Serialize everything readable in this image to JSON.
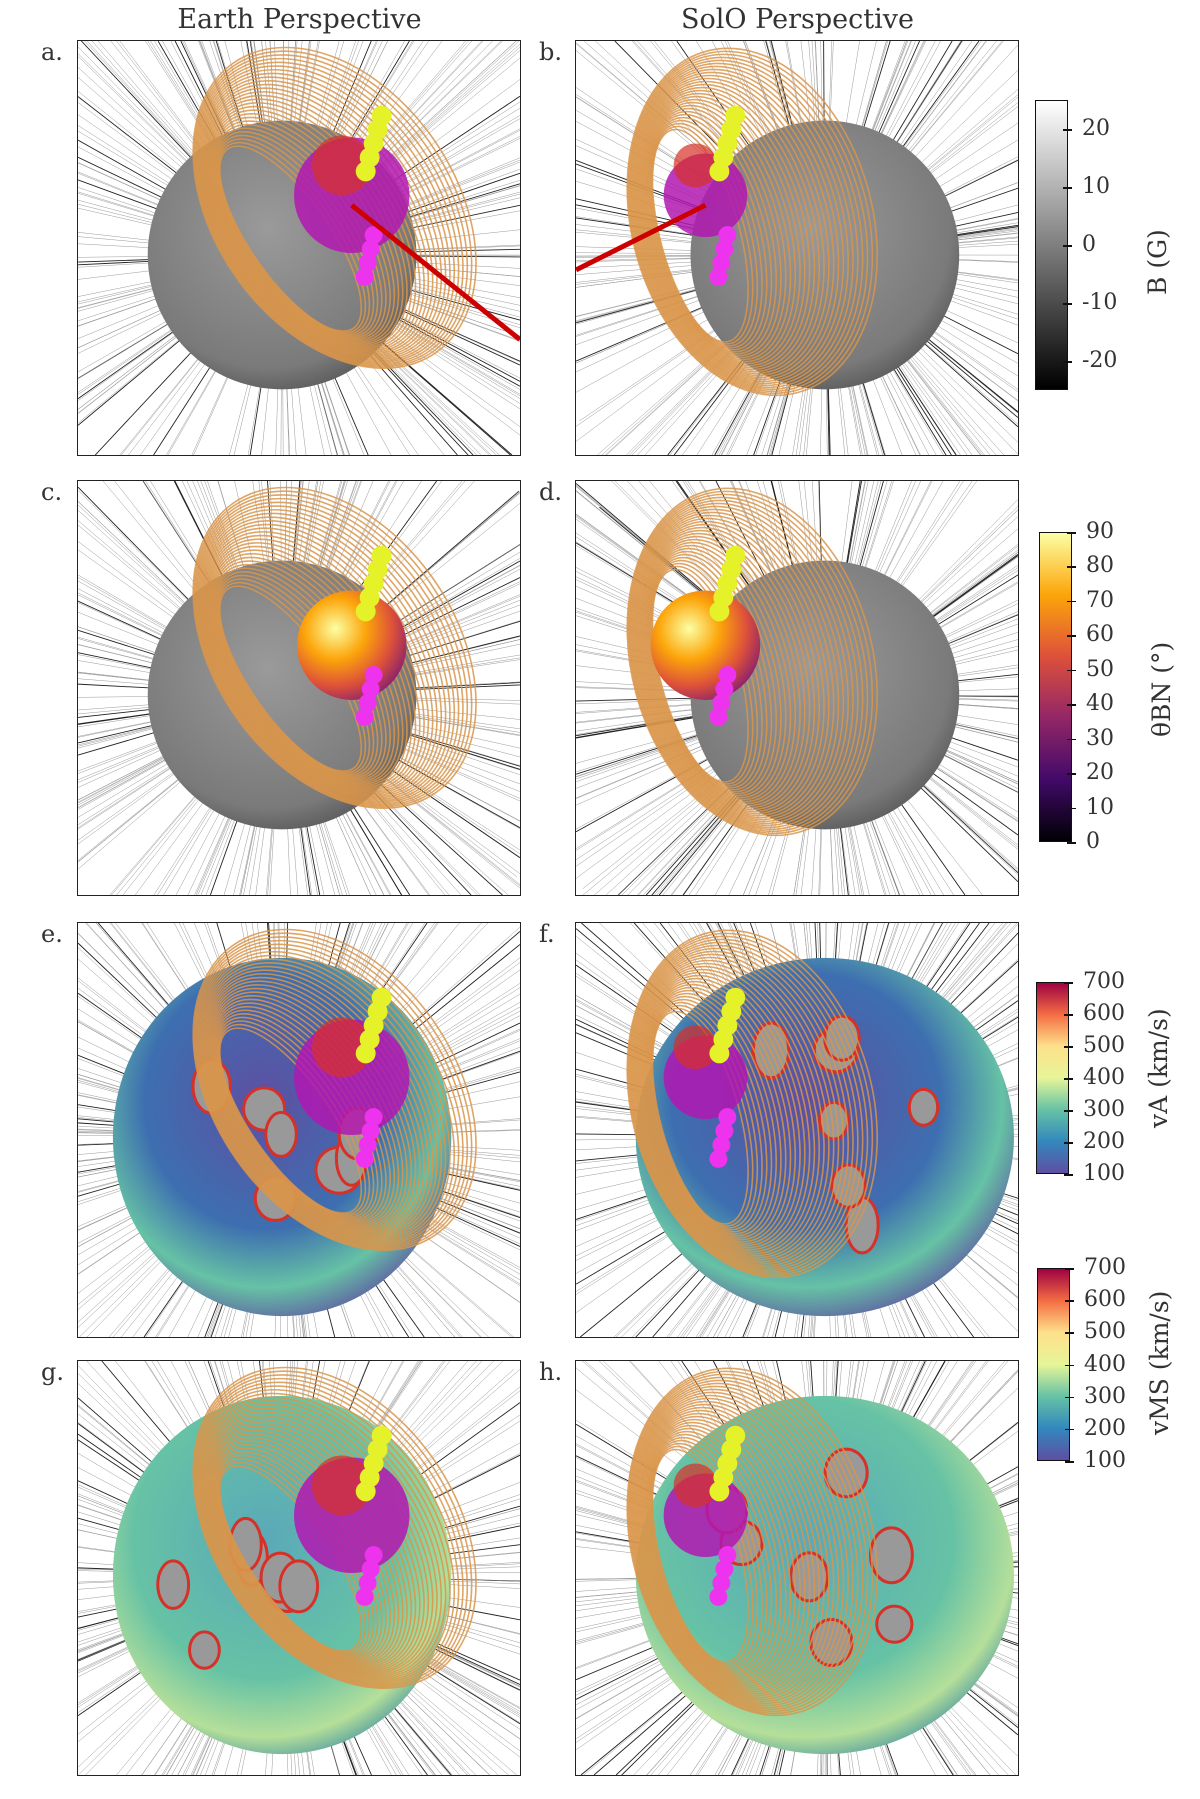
{
  "column_titles": [
    "Earth Perspective",
    "SolO Perspective"
  ],
  "panels": [
    {
      "label": "a.",
      "view": "earth",
      "surface": "magnetogram"
    },
    {
      "label": "b.",
      "view": "solo",
      "surface": "magnetogram"
    },
    {
      "label": "c.",
      "view": "earth",
      "surface": "magnetogram"
    },
    {
      "label": "d.",
      "view": "solo",
      "surface": "magnetogram"
    },
    {
      "label": "e.",
      "view": "earth",
      "surface": "alfven-speed"
    },
    {
      "label": "f.",
      "view": "solo",
      "surface": "alfven-speed"
    },
    {
      "label": "g.",
      "view": "earth",
      "surface": "magnetosonic-speed"
    },
    {
      "label": "h.",
      "view": "solo",
      "surface": "magnetosonic-speed"
    }
  ],
  "colorbars": [
    {
      "label": "B (G)",
      "ticks": [
        "20",
        "10",
        "0",
        "-10",
        "-20"
      ],
      "range": [
        -25,
        25
      ],
      "colors": [
        "#000000",
        "#7f7f7f",
        "#ffffff"
      ]
    },
    {
      "label": "θBN (°)",
      "ticks": [
        "90",
        "80",
        "70",
        "60",
        "50",
        "40",
        "30",
        "20",
        "10",
        "0"
      ],
      "range": [
        0,
        90
      ],
      "colors": [
        "#000004",
        "#420a68",
        "#932667",
        "#dd513a",
        "#fca50a",
        "#fcffa4"
      ]
    },
    {
      "label": "vA (km/s)",
      "ticks": [
        "700",
        "600",
        "500",
        "400",
        "300",
        "200",
        "100"
      ],
      "range": [
        100,
        700
      ],
      "colors": [
        "#5e4fa2",
        "#3288bd",
        "#66c2a5",
        "#e6f598",
        "#fee08b",
        "#f46d43",
        "#9e0142"
      ]
    },
    {
      "label": "vMS (km/s)",
      "ticks": [
        "700",
        "600",
        "500",
        "400",
        "300",
        "200",
        "100"
      ],
      "range": [
        100,
        700
      ],
      "colors": [
        "#5e4fa2",
        "#3288bd",
        "#66c2a5",
        "#e6f598",
        "#fee08b",
        "#f46d43",
        "#9e0142"
      ]
    }
  ]
}
